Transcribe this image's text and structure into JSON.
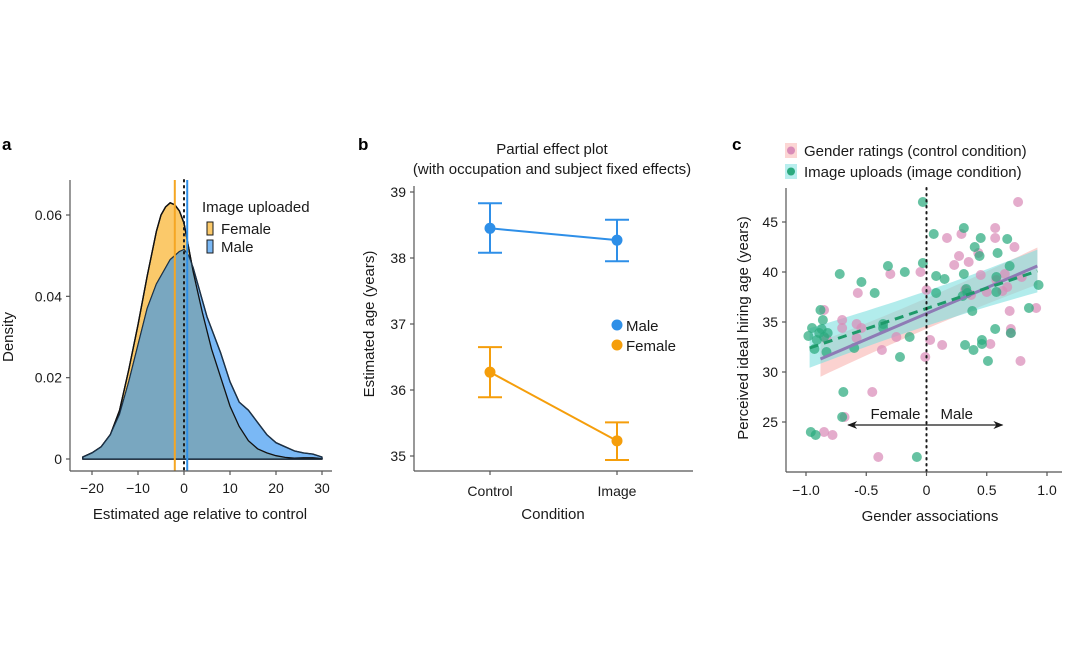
{
  "chart_data": [
    {
      "panel": "a",
      "type": "area",
      "title": "",
      "xlabel": "Estimated age relative to control",
      "ylabel": "Density",
      "xlim": [
        -25,
        32
      ],
      "ylim": [
        -0.003,
        0.066
      ],
      "xticks": [
        -20,
        -10,
        0,
        10,
        20,
        30
      ],
      "xtick_labels": [
        "−20",
        "−10",
        "0",
        "10",
        "20",
        "30"
      ],
      "yticks": [
        0,
        0.02,
        0.04,
        0.06
      ],
      "ytick_labels": [
        "0",
        "0.02",
        "0.04",
        "0.06"
      ],
      "legend": {
        "title": "Image uploaded",
        "position": "top-right"
      },
      "series": [
        {
          "name": "Female",
          "color": "#F5A623",
          "fill": "#FBC96A",
          "mean": -2.0,
          "x": [
            -22,
            -20,
            -18,
            -16,
            -14,
            -12,
            -10,
            -8,
            -6,
            -5,
            -4,
            -3,
            -2,
            -1,
            0,
            1,
            2,
            3,
            4,
            6,
            8,
            10,
            12,
            14,
            16,
            18,
            20,
            22,
            24,
            26,
            28,
            30
          ],
          "y": [
            0.0005,
            0.0015,
            0.003,
            0.006,
            0.012,
            0.022,
            0.033,
            0.045,
            0.056,
            0.06,
            0.062,
            0.063,
            0.0625,
            0.061,
            0.058,
            0.052,
            0.046,
            0.041,
            0.036,
            0.027,
            0.02,
            0.013,
            0.008,
            0.0045,
            0.0025,
            0.0015,
            0.0008,
            0.0004,
            0.0002,
            0.0003,
            0.0003,
            0.0001
          ]
        },
        {
          "name": "Male",
          "color": "#2E8FE8",
          "fill": "#7AB8F5",
          "mean": 0.7,
          "x": [
            -22,
            -20,
            -18,
            -16,
            -14,
            -12,
            -10,
            -8,
            -6,
            -4,
            -3,
            -2,
            -1,
            0,
            1,
            2,
            3,
            4,
            5,
            6,
            8,
            10,
            12,
            14,
            16,
            18,
            20,
            22,
            24,
            26,
            28,
            30
          ],
          "y": [
            0.0005,
            0.0015,
            0.003,
            0.006,
            0.011,
            0.019,
            0.028,
            0.037,
            0.043,
            0.047,
            0.049,
            0.05,
            0.051,
            0.0515,
            0.05,
            0.047,
            0.043,
            0.039,
            0.035,
            0.032,
            0.026,
            0.019,
            0.014,
            0.012,
            0.009,
            0.006,
            0.004,
            0.003,
            0.002,
            0.0015,
            0.0012,
            0.0005
          ]
        }
      ],
      "reference_line": {
        "x": 0,
        "style": "dotted",
        "color": "#1a1a1a"
      }
    },
    {
      "panel": "b",
      "type": "line",
      "title": "Partial effect plot",
      "subtitle": "(with occupation and subject fixed effects)",
      "xlabel": "Condition",
      "ylabel": "Estimated age (years)",
      "categories": [
        "Control",
        "Image"
      ],
      "ylim": [
        34.77,
        39.05
      ],
      "yticks": [
        35,
        36,
        37,
        38,
        39
      ],
      "ytick_labels": [
        "35",
        "36",
        "37",
        "38",
        "39"
      ],
      "legend": {
        "position": "center-right"
      },
      "series": [
        {
          "name": "Male",
          "color": "#2E8FE8",
          "values": [
            38.45,
            38.27
          ],
          "ci_low": [
            38.08,
            37.95
          ],
          "ci_high": [
            38.83,
            38.58
          ]
        },
        {
          "name": "Female",
          "color": "#F59E0B",
          "values": [
            36.27,
            35.23
          ],
          "ci_low": [
            35.89,
            34.94
          ],
          "ci_high": [
            36.65,
            35.51
          ]
        }
      ]
    },
    {
      "panel": "c",
      "type": "scatter",
      "title": "",
      "xlabel": "Gender associations",
      "ylabel": "Perceived ideal hiring age (years)",
      "xlim": [
        -1.17,
        1.1
      ],
      "ylim": [
        20.0,
        48.8
      ],
      "xticks": [
        -1.0,
        -0.5,
        0,
        0.5,
        1.0
      ],
      "xtick_labels": [
        "−1.0",
        "-0.5",
        "0",
        "0.5",
        "1.0"
      ],
      "yticks": [
        25,
        30,
        35,
        40,
        45
      ],
      "ytick_labels": [
        "25",
        "30",
        "35",
        "40",
        "45"
      ],
      "legend": {
        "position": "top"
      },
      "annotations": {
        "left_arrow_label": "Female",
        "right_arrow_label": "Male",
        "arrow_y": 24.7,
        "arrow_x_from": -0.65,
        "arrow_x_to": 0.63
      },
      "reference_line": {
        "x": 0,
        "style": "dotted",
        "color": "#1a1a1a"
      },
      "series": [
        {
          "name": "Gender ratings (control condition)",
          "color": "#D98CB8",
          "band_color": "#F9B4B0",
          "fit": {
            "style": "solid",
            "line_color": "#8E7BB5",
            "x": [
              -0.88,
              0.92
            ],
            "y": [
              31.3,
              40.6
            ],
            "ci_low": [
              29.2,
              38.2
            ],
            "ci_high": [
              33.5,
              42.7
            ]
          },
          "points": [
            [
              -0.85,
              36.2
            ],
            [
              -0.83,
              33.3
            ],
            [
              -0.7,
              35.2
            ],
            [
              -0.7,
              34.4
            ],
            [
              -0.68,
              25.5
            ],
            [
              -0.85,
              24.0
            ],
            [
              -0.78,
              23.7
            ],
            [
              -0.57,
              37.9
            ],
            [
              -0.58,
              34.8
            ],
            [
              -0.58,
              33.4
            ],
            [
              -0.54,
              34.4
            ],
            [
              -0.45,
              28.0
            ],
            [
              -0.4,
              21.5
            ],
            [
              -0.37,
              32.2
            ],
            [
              -0.3,
              39.8
            ],
            [
              -0.25,
              33.5
            ],
            [
              -0.05,
              40.0
            ],
            [
              -0.01,
              31.5
            ],
            [
              0.0,
              38.2
            ],
            [
              0.03,
              33.2
            ],
            [
              0.13,
              32.7
            ],
            [
              0.17,
              43.4
            ],
            [
              0.23,
              40.7
            ],
            [
              0.27,
              41.6
            ],
            [
              0.29,
              43.8
            ],
            [
              0.32,
              38.2
            ],
            [
              0.35,
              41.0
            ],
            [
              0.37,
              37.7
            ],
            [
              0.43,
              41.9
            ],
            [
              0.45,
              39.7
            ],
            [
              0.5,
              38.0
            ],
            [
              0.53,
              32.8
            ],
            [
              0.57,
              44.4
            ],
            [
              0.57,
              43.4
            ],
            [
              0.63,
              38.1
            ],
            [
              0.65,
              39.8
            ],
            [
              0.67,
              38.5
            ],
            [
              0.69,
              36.1
            ],
            [
              0.7,
              34.3
            ],
            [
              0.7,
              33.9
            ],
            [
              0.73,
              42.5
            ],
            [
              0.76,
              47.0
            ],
            [
              0.78,
              31.1
            ],
            [
              0.79,
              39.5
            ],
            [
              0.91,
              36.4
            ],
            [
              0.58,
              39.2
            ]
          ]
        },
        {
          "name": "Image uploads (image condition)",
          "color": "#2BAA7E",
          "band_color": "#7EE0E0",
          "fit": {
            "style": "dashed",
            "line_color": "#1E9A6A",
            "x": [
              -0.97,
              0.92
            ],
            "y": [
              32.4,
              40.1
            ],
            "ci_low": [
              30.0,
              37.5
            ],
            "ci_high": [
              34.8,
              42.7
            ]
          },
          "points": [
            [
              -0.98,
              33.6
            ],
            [
              -0.96,
              24.0
            ],
            [
              -0.95,
              34.4
            ],
            [
              -0.93,
              32.3
            ],
            [
              -0.92,
              23.7
            ],
            [
              -0.91,
              33.2
            ],
            [
              -0.89,
              33.9
            ],
            [
              -0.88,
              36.2
            ],
            [
              -0.87,
              34.3
            ],
            [
              -0.86,
              35.2
            ],
            [
              -0.85,
              33.5
            ],
            [
              -0.83,
              32.0
            ],
            [
              -0.82,
              33.9
            ],
            [
              -0.72,
              39.8
            ],
            [
              -0.69,
              28.0
            ],
            [
              -0.7,
              25.5
            ],
            [
              -0.6,
              32.4
            ],
            [
              -0.54,
              39.0
            ],
            [
              -0.43,
              37.9
            ],
            [
              -0.36,
              34.8
            ],
            [
              -0.36,
              34.4
            ],
            [
              -0.32,
              40.6
            ],
            [
              -0.22,
              31.5
            ],
            [
              -0.18,
              40.0
            ],
            [
              -0.14,
              33.5
            ],
            [
              -0.08,
              21.5
            ],
            [
              -0.03,
              47.0
            ],
            [
              -0.03,
              40.9
            ],
            [
              0.06,
              43.8
            ],
            [
              0.08,
              39.6
            ],
            [
              0.08,
              37.9
            ],
            [
              0.15,
              39.3
            ],
            [
              0.3,
              37.6
            ],
            [
              0.31,
              39.8
            ],
            [
              0.31,
              44.4
            ],
            [
              0.32,
              32.7
            ],
            [
              0.33,
              38.3
            ],
            [
              0.34,
              37.9
            ],
            [
              0.38,
              36.1
            ],
            [
              0.39,
              32.2
            ],
            [
              0.4,
              42.5
            ],
            [
              0.44,
              41.6
            ],
            [
              0.45,
              43.4
            ],
            [
              0.46,
              33.2
            ],
            [
              0.46,
              32.8
            ],
            [
              0.51,
              31.1
            ],
            [
              0.57,
              34.3
            ],
            [
              0.58,
              39.5
            ],
            [
              0.58,
              38.0
            ],
            [
              0.59,
              41.9
            ],
            [
              0.67,
              43.3
            ],
            [
              0.69,
              40.6
            ],
            [
              0.7,
              33.9
            ],
            [
              0.85,
              36.4
            ],
            [
              0.93,
              38.7
            ]
          ]
        }
      ]
    }
  ],
  "panels": {
    "a": {
      "letter": "a"
    },
    "b": {
      "letter": "b"
    },
    "c": {
      "letter": "c"
    }
  }
}
